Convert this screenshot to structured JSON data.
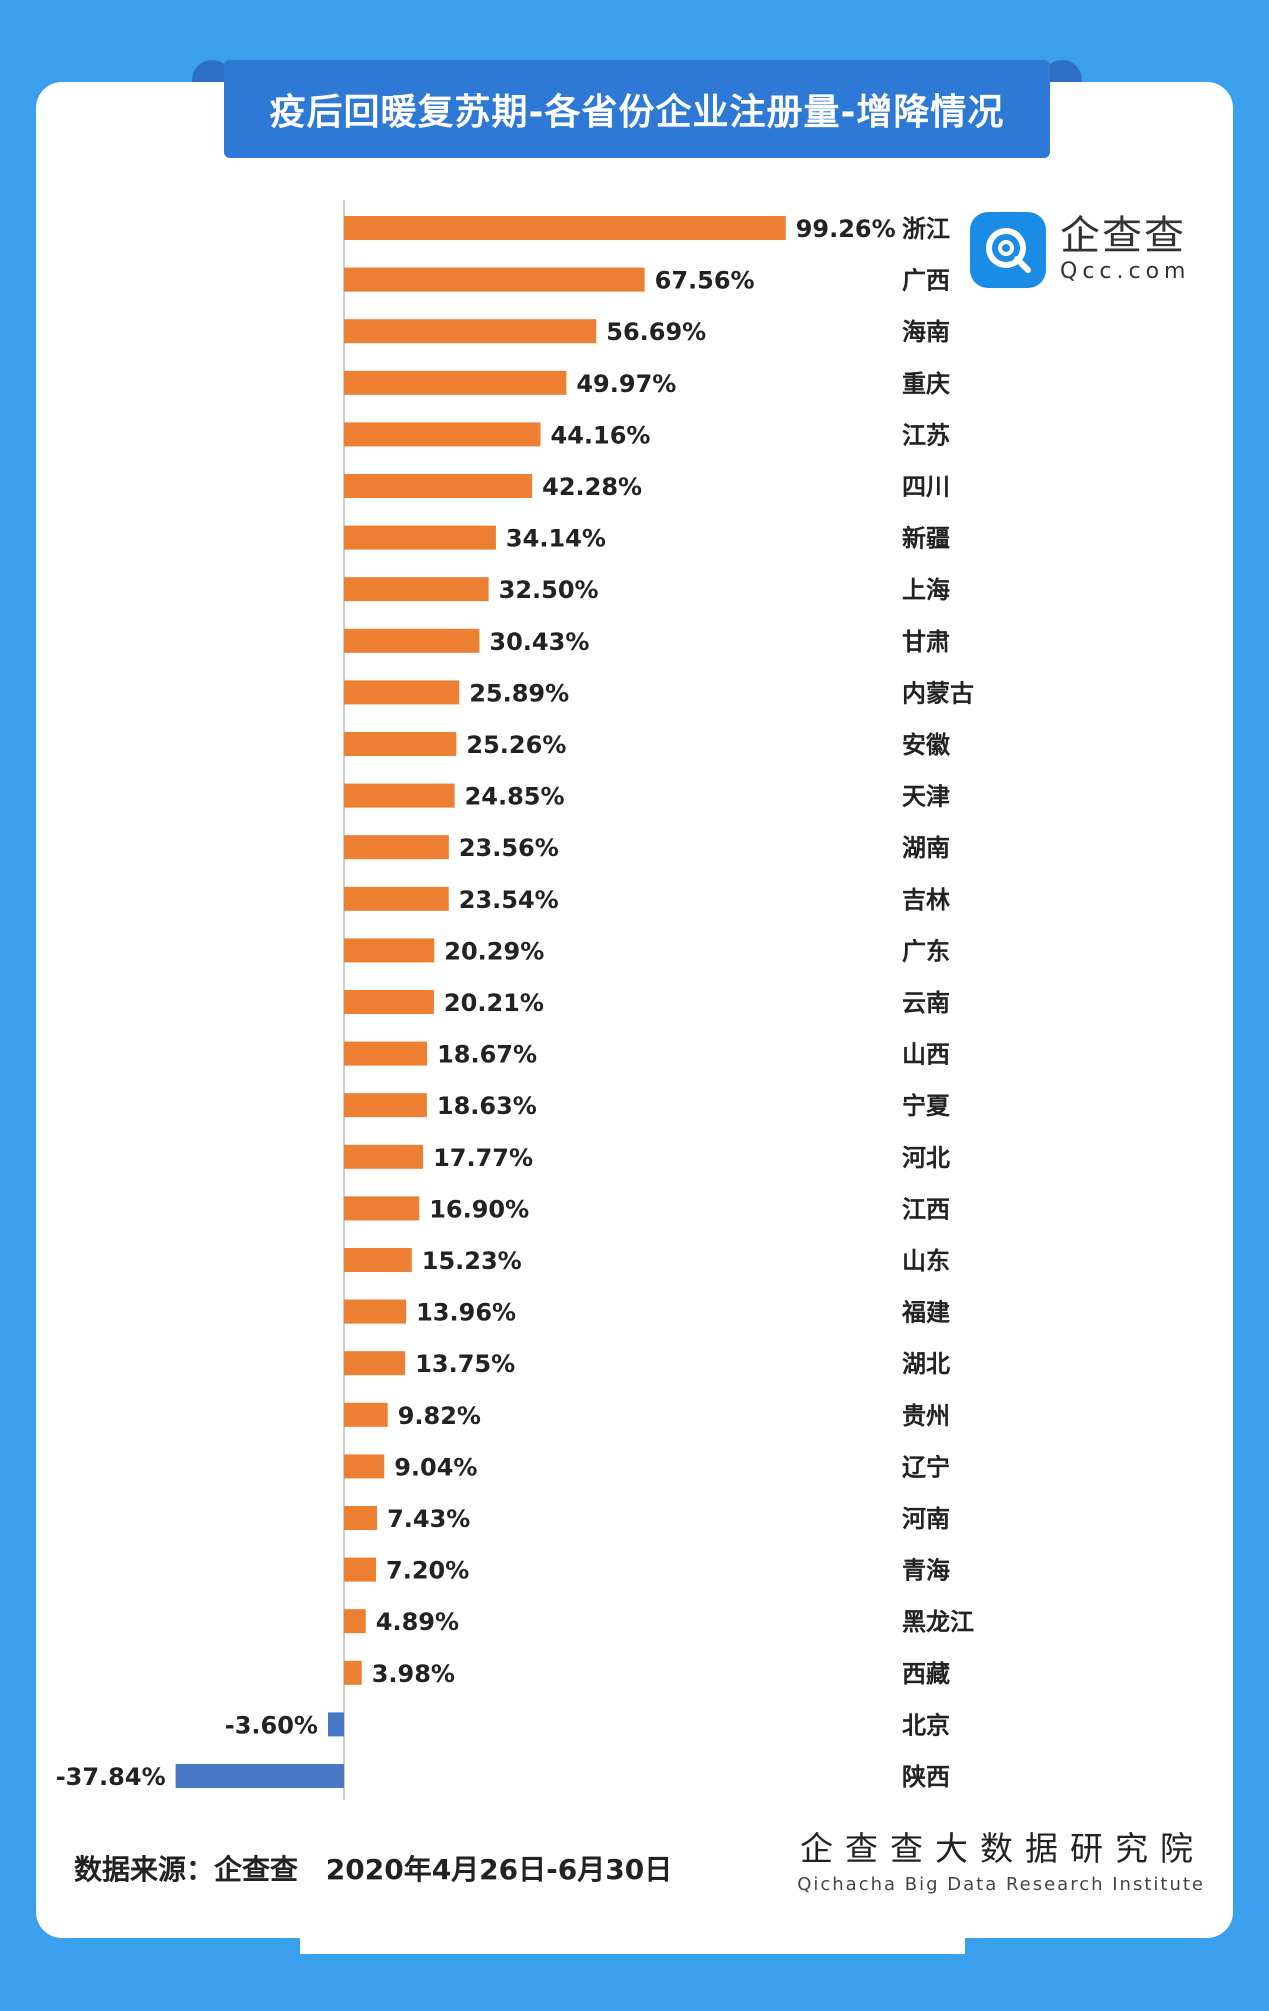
{
  "title": "疫后回暖复苏期-各省份企业注册量-增降情况",
  "logo": {
    "name": "企查查",
    "domain": "Qcc.com",
    "icon": "qcc-magnifier-logo-icon",
    "color": "#1b8ce6"
  },
  "colors": {
    "positive": "#ec7f32",
    "negative": "#4a76c6",
    "title_bg": "#2e78d6",
    "page_bg": "#3aa0ee"
  },
  "chart_data": {
    "type": "bar",
    "orientation": "horizontal",
    "title": "疫后回暖复苏期-各省份企业注册量-增降情况",
    "unit": "%",
    "categories": [
      "浙江",
      "广西",
      "海南",
      "重庆",
      "江苏",
      "四川",
      "新疆",
      "上海",
      "甘肃",
      "内蒙古",
      "安徽",
      "天津",
      "湖南",
      "吉林",
      "广东",
      "云南",
      "山西",
      "宁夏",
      "河北",
      "江西",
      "山东",
      "福建",
      "湖北",
      "贵州",
      "辽宁",
      "河南",
      "青海",
      "黑龙江",
      "西藏",
      "北京",
      "陕西"
    ],
    "values": [
      99.26,
      67.56,
      56.69,
      49.97,
      44.16,
      42.28,
      34.14,
      32.5,
      30.43,
      25.89,
      25.26,
      24.85,
      23.56,
      23.54,
      20.29,
      20.21,
      18.67,
      18.63,
      17.77,
      16.9,
      15.23,
      13.96,
      13.75,
      9.82,
      9.04,
      7.43,
      7.2,
      4.89,
      3.98,
      -3.6,
      -37.84
    ],
    "value_labels": [
      "99.26%",
      "67.56%",
      "56.69%",
      "49.97%",
      "44.16%",
      "42.28%",
      "34.14%",
      "32.50%",
      "30.43%",
      "25.89%",
      "25.26%",
      "24.85%",
      "23.56%",
      "23.54%",
      "20.29%",
      "20.21%",
      "18.67%",
      "18.63%",
      "17.77%",
      "16.90%",
      "15.23%",
      "13.96%",
      "13.75%",
      "9.82%",
      "9.04%",
      "7.43%",
      "7.20%",
      "4.89%",
      "3.98%",
      "-3.60%",
      "-37.84%"
    ],
    "xlim": [
      -37.84,
      99.26
    ],
    "grid": false,
    "legend": "none"
  },
  "footer": {
    "source_label": "数据来源：企查查",
    "date_range": "2020年4月26日-6月30日",
    "institute_cn": "企查查大数据研究院",
    "institute_en": "Qichacha Big Data Research Institute"
  }
}
